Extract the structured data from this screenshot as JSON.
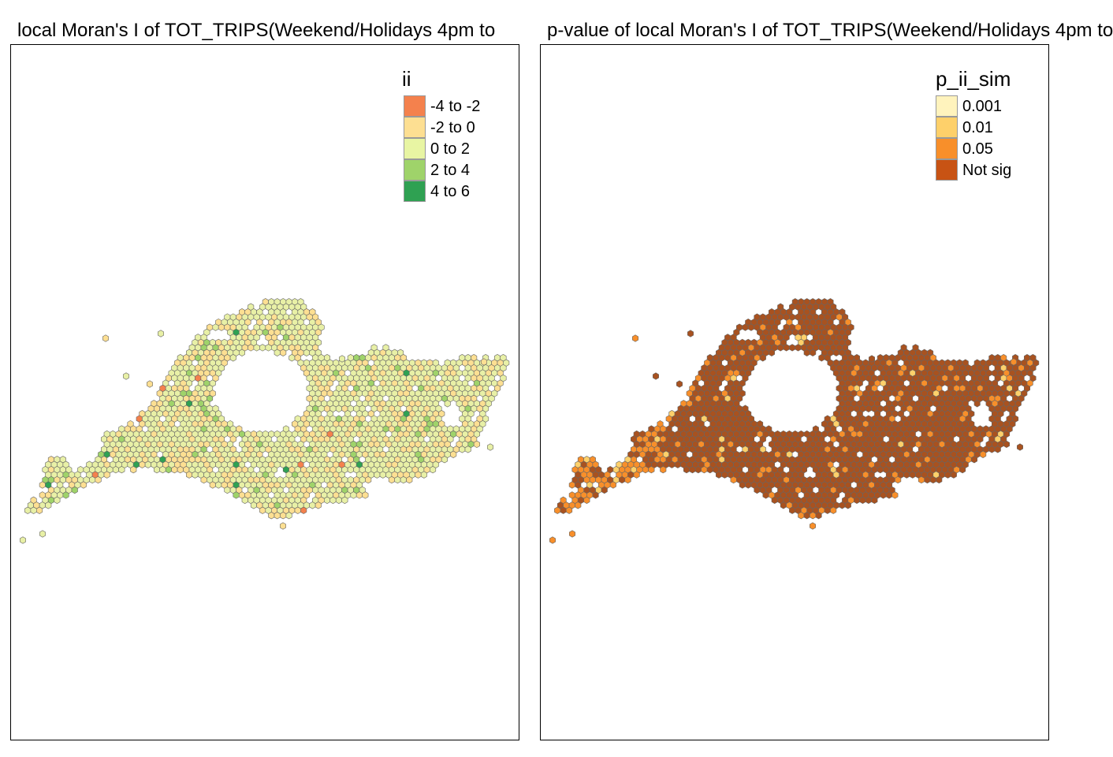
{
  "panels": {
    "left": {
      "title": "local Moran's I of TOT_TRIPS(Weekend/Holidays 4pm to",
      "legend": {
        "title": "ii",
        "classes": [
          {
            "label": "-4 to -2",
            "color": "#f4814d"
          },
          {
            "label": "-2 to 0",
            "color": "#fddf92"
          },
          {
            "label": "0 to 2",
            "color": "#e8f5a3"
          },
          {
            "label": "2 to 4",
            "color": "#9fd36a"
          },
          {
            "label": "4 to 6",
            "color": "#2fa152"
          }
        ]
      }
    },
    "right": {
      "title": "p-value of local Moran's I of TOT_TRIPS(Weekend/Holidays 4pm to",
      "legend": {
        "title": "p_ii_sim",
        "classes": [
          {
            "label": "0.001",
            "color": "#fff3bd"
          },
          {
            "label": "0.01",
            "color": "#fed06a"
          },
          {
            "label": "0.05",
            "color": "#f88f2a"
          },
          {
            "label": "Not sig",
            "color": "#c85314"
          }
        ]
      }
    }
  },
  "colors": {
    "hex_outline": "#666666",
    "left_base_fill": "#e8f0a6",
    "right_base_fill": "#a85220"
  }
}
